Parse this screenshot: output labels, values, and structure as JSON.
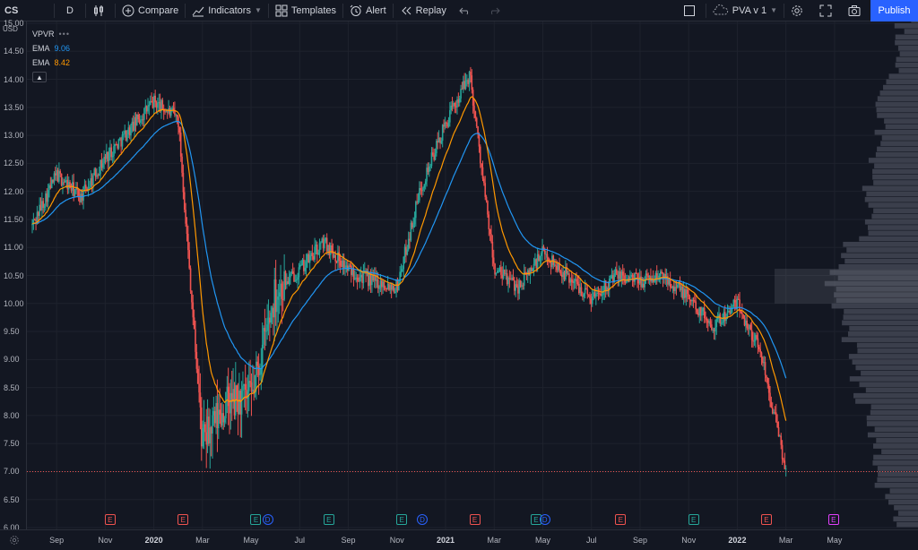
{
  "toolbar": {
    "symbol": "CS",
    "interval": "D",
    "compare_label": "Compare",
    "indicators_label": "Indicators",
    "templates_label": "Templates",
    "alert_label": "Alert",
    "replay_label": "Replay",
    "layout_label": "PVA v 1",
    "publish_label": "Publish"
  },
  "legend": {
    "vpvr_label": "VPVR",
    "vpvr_dots": "•••",
    "ema1_label": "EMA",
    "ema1_value": "9.06",
    "ema1_color": "#2196f3",
    "ema2_label": "EMA",
    "ema2_value": "8.42",
    "ema2_color": "#ff9800"
  },
  "price_axis": {
    "currency": "USD",
    "labels": [
      "15.00",
      "14.50",
      "14.00",
      "13.50",
      "13.00",
      "12.50",
      "12.00",
      "11.50",
      "11.00",
      "10.50",
      "10.00",
      "9.50",
      "9.00",
      "8.50",
      "8.00",
      "7.50",
      "7.00",
      "6.50",
      "6.00"
    ]
  },
  "time_axis": {
    "labels": [
      {
        "text": "Sep",
        "year": false
      },
      {
        "text": "Nov",
        "year": false
      },
      {
        "text": "2020",
        "year": true
      },
      {
        "text": "Mar",
        "year": false
      },
      {
        "text": "May",
        "year": false
      },
      {
        "text": "Jul",
        "year": false
      },
      {
        "text": "Sep",
        "year": false
      },
      {
        "text": "Nov",
        "year": false
      },
      {
        "text": "2021",
        "year": true
      },
      {
        "text": "Mar",
        "year": false
      },
      {
        "text": "May",
        "year": false
      },
      {
        "text": "Jul",
        "year": false
      },
      {
        "text": "Sep",
        "year": false
      },
      {
        "text": "Nov",
        "year": false
      },
      {
        "text": "2022",
        "year": true
      },
      {
        "text": "Mar",
        "year": false
      },
      {
        "text": "May",
        "year": false
      }
    ]
  },
  "events": [
    {
      "type": "E",
      "kind": "earnings-red"
    },
    {
      "type": "E",
      "kind": "earnings-red"
    },
    {
      "type": "E",
      "kind": "earnings-green"
    },
    {
      "type": "D",
      "kind": "dividend"
    },
    {
      "type": "E",
      "kind": "earnings-green"
    },
    {
      "type": "E",
      "kind": "earnings-green"
    },
    {
      "type": "D",
      "kind": "dividend"
    },
    {
      "type": "E",
      "kind": "earnings-red"
    },
    {
      "type": "E",
      "kind": "earnings-green"
    },
    {
      "type": "D",
      "kind": "dividend"
    },
    {
      "type": "E",
      "kind": "earnings-red"
    },
    {
      "type": "E",
      "kind": "earnings-green"
    },
    {
      "type": "E",
      "kind": "earnings-red"
    },
    {
      "type": "E",
      "kind": "earnings-future"
    }
  ],
  "colors": {
    "up": "#26a69a",
    "down": "#ef5350",
    "earnings_red": "#ef5350",
    "earnings_green": "#26a69a",
    "dividend": "#2962ff",
    "earnings_future": "#e040fb",
    "volume_profile": "#5d6170",
    "price_line": "#ef5350"
  },
  "chart_data": {
    "type": "candlestick",
    "series": [
      {
        "name": "EMA",
        "value": "9.06"
      },
      {
        "name": "EMA",
        "value": "8.42"
      }
    ],
    "ylim": [
      6.0,
      15.0
    ],
    "x_range": [
      "Aug 2019",
      "May 2022"
    ],
    "close_path": [
      [
        "2019-08",
        11.4
      ],
      [
        "2019-09",
        12.3
      ],
      [
        "2019-10",
        11.9
      ],
      [
        "2019-11",
        12.6
      ],
      [
        "2019-12",
        13.1
      ],
      [
        "2020-01",
        13.6
      ],
      [
        "2020-02",
        13.3
      ],
      [
        "2020-03",
        7.5
      ],
      [
        "2020-04",
        8.2
      ],
      [
        "2020-05",
        8.3
      ],
      [
        "2020-06",
        10.2
      ],
      [
        "2020-07",
        10.6
      ],
      [
        "2020-08",
        11.1
      ],
      [
        "2020-09",
        10.6
      ],
      [
        "2020-10",
        10.4
      ],
      [
        "2020-11",
        10.3
      ],
      [
        "2020-12",
        12.1
      ],
      [
        "2021-01",
        13.2
      ],
      [
        "2021-02",
        14.1
      ],
      [
        "2021-03",
        10.6
      ],
      [
        "2021-04",
        10.3
      ],
      [
        "2021-05",
        10.9
      ],
      [
        "2021-06",
        10.5
      ],
      [
        "2021-07",
        10.1
      ],
      [
        "2021-08",
        10.5
      ],
      [
        "2021-09",
        10.4
      ],
      [
        "2021-10",
        10.5
      ],
      [
        "2021-11",
        10.1
      ],
      [
        "2021-12",
        9.6
      ],
      [
        "2022-01",
        10.0
      ],
      [
        "2022-02",
        9.1
      ],
      [
        "2022-03",
        7.0
      ]
    ],
    "last_price": 7.0
  }
}
